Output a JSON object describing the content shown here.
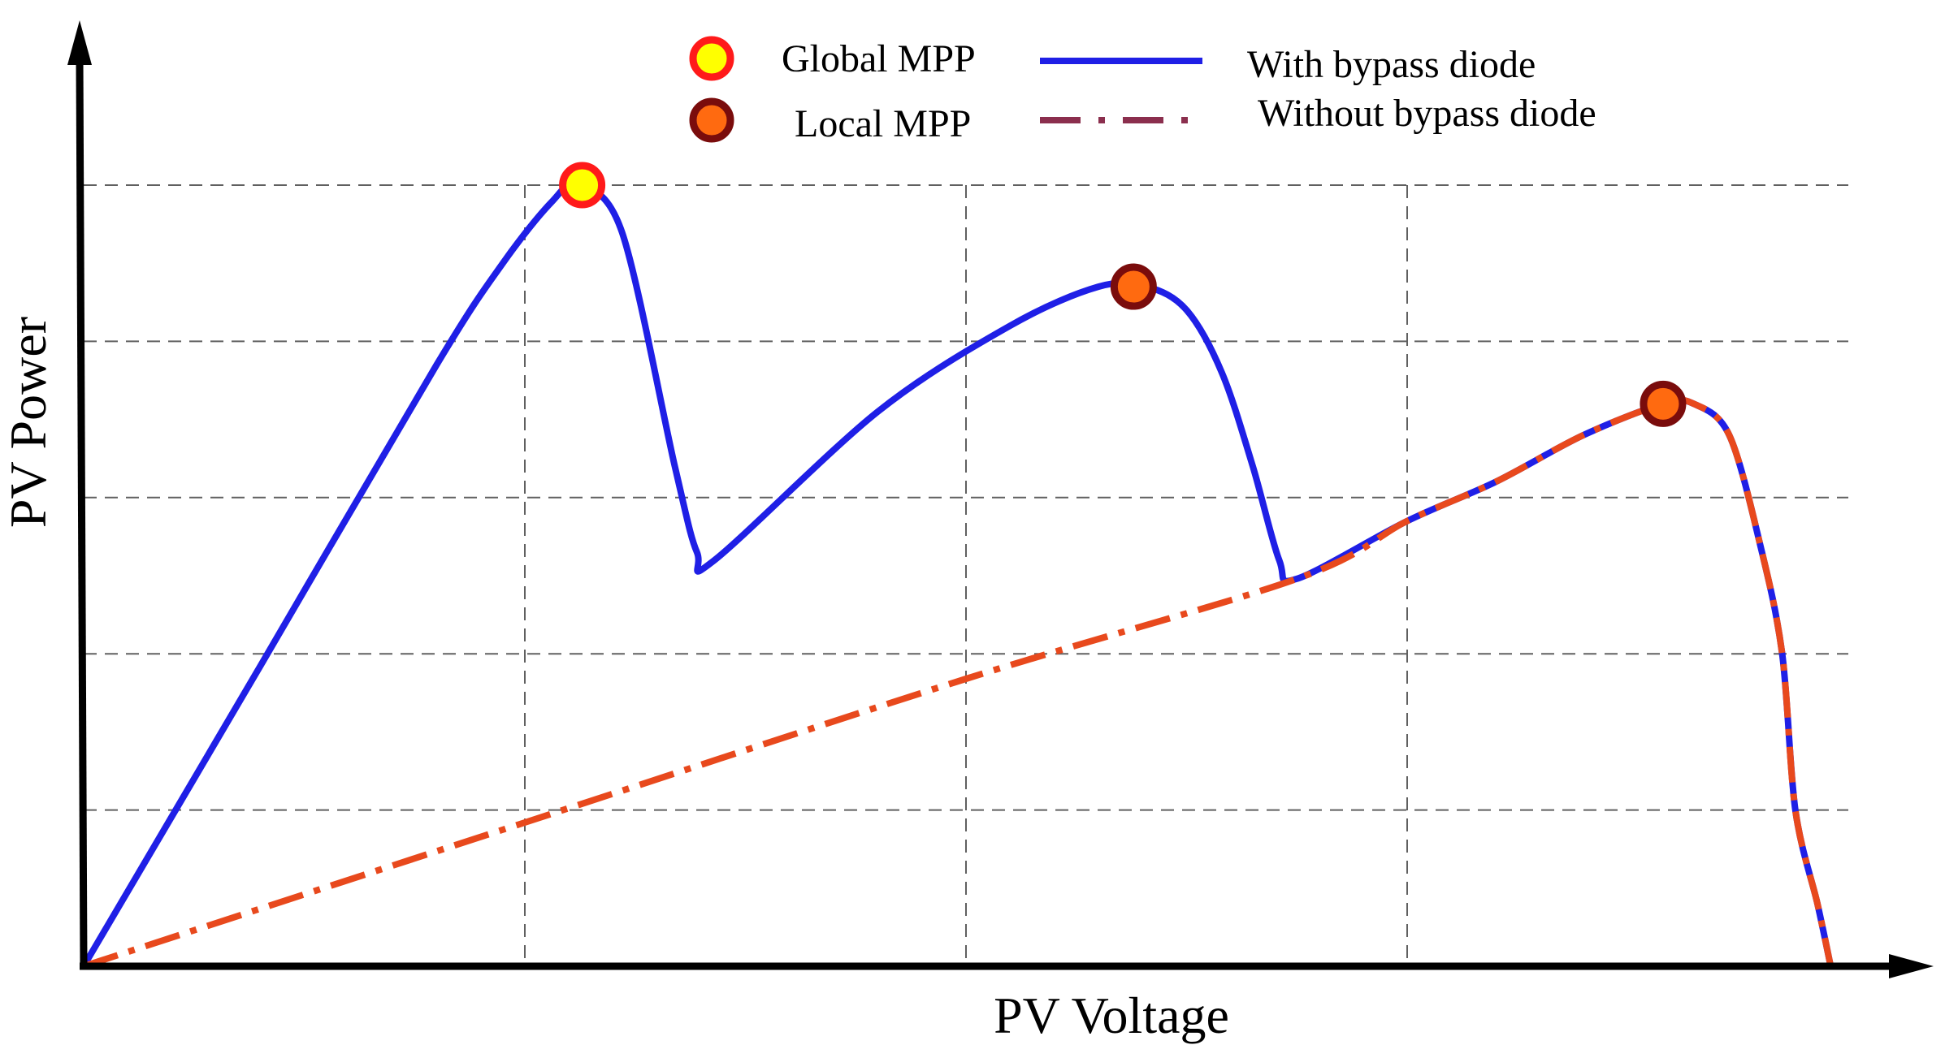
{
  "chart_data": {
    "type": "line",
    "title": "",
    "xlabel": "PV Voltage",
    "ylabel": "PV Power",
    "xlim": [
      0,
      4
    ],
    "ylim": [
      0,
      5
    ],
    "grid": true,
    "legend_position": "top",
    "series": [
      {
        "name": "With bypass diode",
        "color": "#1f1fe6",
        "style": "solid",
        "x": [
          0,
          0.4,
          0.8,
          0.95,
          1.06,
          1.12,
          1.22,
          1.34,
          1.39,
          1.43,
          1.8,
          2.1,
          2.3,
          2.41,
          2.5,
          2.58,
          2.65,
          2.71,
          2.75,
          3.0,
          3.2,
          3.4,
          3.58,
          3.65,
          3.73,
          3.8,
          3.85,
          3.88,
          3.93,
          3.96
        ],
        "y": [
          0,
          1.92,
          3.85,
          4.5,
          4.89,
          5.0,
          4.7,
          3.2,
          2.65,
          2.6,
          3.55,
          4.1,
          4.35,
          4.35,
          4.2,
          3.8,
          3.2,
          2.6,
          2.48,
          2.85,
          3.1,
          3.4,
          3.6,
          3.6,
          3.4,
          2.7,
          2.0,
          1.0,
          0.4,
          0.0
        ]
      },
      {
        "name": "Without bypass diode",
        "color": "#e8491d",
        "style": "dashdot",
        "x": [
          0,
          1.0,
          2.0,
          2.75,
          3.0,
          3.2,
          3.4,
          3.58,
          3.65,
          3.73,
          3.8,
          3.85,
          3.88,
          3.93,
          3.96
        ],
        "y": [
          0,
          0.92,
          1.84,
          2.48,
          2.85,
          3.1,
          3.4,
          3.6,
          3.6,
          3.4,
          2.7,
          2.0,
          1.0,
          0.4,
          0.0
        ]
      }
    ],
    "markers": [
      {
        "name": "Global MPP",
        "x": 1.13,
        "y": 5.0,
        "fill": "#ffff00",
        "stroke": "#ff1a1a"
      },
      {
        "name": "Local MPP",
        "x": 2.38,
        "y": 4.35,
        "fill": "#ff6a10",
        "stroke": "#7a0c0c"
      },
      {
        "name": "Local MPP",
        "x": 3.58,
        "y": 3.6,
        "fill": "#ff6a10",
        "stroke": "#7a0c0c"
      }
    ],
    "legend": {
      "global_label": "Global MPP",
      "local_label": "Local MPP",
      "with_label": "With bypass diode",
      "without_label": "Without bypass diode"
    },
    "colors": {
      "axis": "#000000",
      "grid": "#606060",
      "legend_dashdot": "#8b2f4e"
    }
  }
}
